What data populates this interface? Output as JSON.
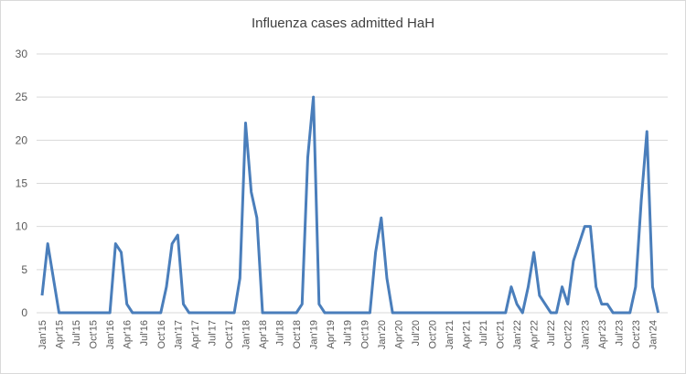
{
  "chart_data": {
    "type": "line",
    "title": "Influenza cases admitted HaH",
    "categories": [
      "Jan'15",
      null,
      null,
      "Apr'15",
      null,
      null,
      "Jul'15",
      null,
      null,
      "Oct'15",
      null,
      null,
      "Jan'16",
      null,
      null,
      "Apr'16",
      null,
      null,
      "Jul'16",
      null,
      null,
      "Oct'16",
      null,
      null,
      "Jan'17",
      null,
      null,
      "Apr'17",
      null,
      null,
      "Jul'17",
      null,
      null,
      "Oct'17",
      null,
      null,
      "Jan'18",
      null,
      null,
      "Apr'18",
      null,
      null,
      "Jul'18",
      null,
      null,
      "Oct'18",
      null,
      null,
      "Jan'19",
      null,
      null,
      "Apr'19",
      null,
      null,
      "Jul'19",
      null,
      null,
      "Oct'19",
      null,
      null,
      "Jan'20",
      null,
      null,
      "Apr'20",
      null,
      null,
      "Jul'20",
      null,
      null,
      "Oct'20",
      null,
      null,
      "Jan'21",
      null,
      null,
      "Apr'21",
      null,
      null,
      "Jul'21",
      null,
      null,
      "Oct'21",
      null,
      null,
      "Jan'22",
      null,
      null,
      "Apr'22",
      null,
      null,
      "Jul'22",
      null,
      null,
      "Oct'22",
      null,
      null,
      "Jan'23",
      null,
      null,
      "Apr'23",
      null,
      null,
      "Jul'23",
      null,
      null,
      "Oct'23",
      null,
      null,
      "Jan'24",
      null
    ],
    "values": [
      2,
      8,
      4,
      0,
      0,
      0,
      0,
      0,
      0,
      0,
      0,
      0,
      0,
      8,
      7,
      1,
      0,
      0,
      0,
      0,
      0,
      0,
      3,
      8,
      9,
      1,
      0,
      0,
      0,
      0,
      0,
      0,
      0,
      0,
      0,
      4,
      22,
      14,
      11,
      0,
      0,
      0,
      0,
      0,
      0,
      0,
      1,
      18,
      25,
      1,
      0,
      0,
      0,
      0,
      0,
      0,
      0,
      0,
      0,
      7,
      11,
      4,
      0,
      0,
      0,
      0,
      0,
      0,
      0,
      0,
      0,
      0,
      0,
      0,
      0,
      0,
      0,
      0,
      0,
      0,
      0,
      0,
      0,
      3,
      1,
      0,
      3,
      7,
      2,
      1,
      0,
      0,
      3,
      1,
      6,
      8,
      10,
      10,
      3,
      1,
      1,
      0,
      0,
      0,
      0,
      3,
      13,
      21,
      3,
      0
    ],
    "color": "#4a7ebb",
    "ylim": [
      0,
      30
    ],
    "yticks": [
      0,
      5,
      10,
      15,
      20,
      25,
      30
    ],
    "grid": true
  }
}
